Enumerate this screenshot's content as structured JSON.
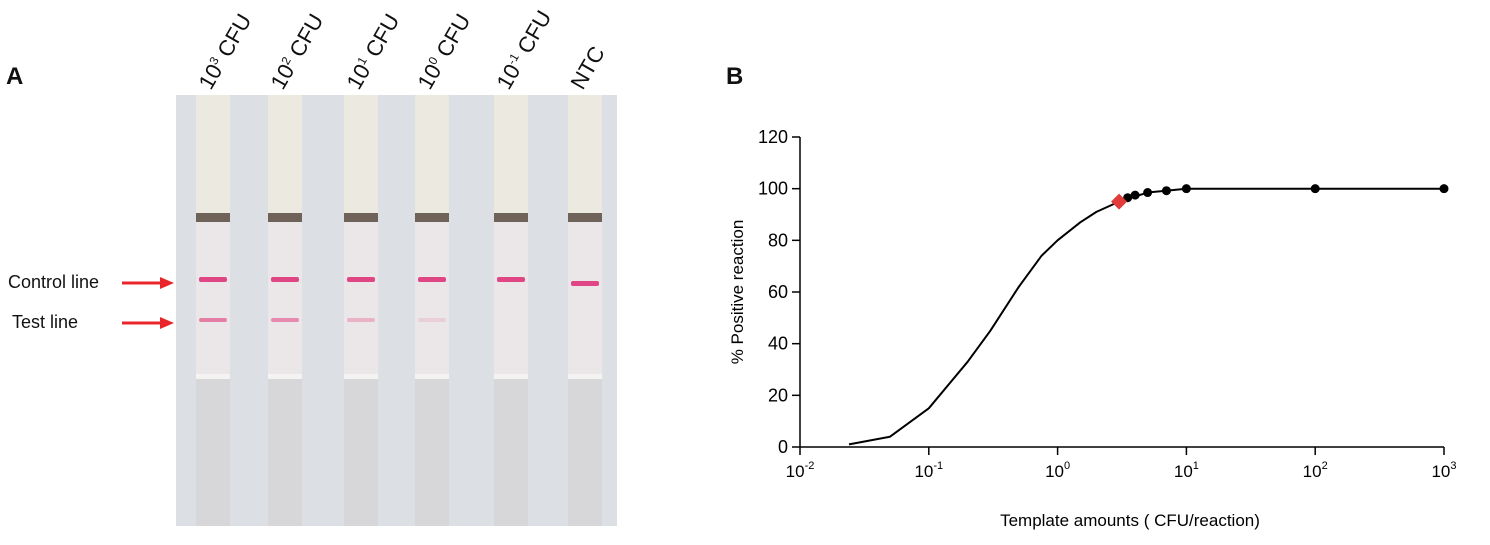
{
  "panel_a": {
    "letter": "A",
    "strips": [
      {
        "base": "10",
        "exp": "3",
        "unit": "CFU",
        "test_intensity": 0.9
      },
      {
        "base": "10",
        "exp": "2",
        "unit": "CFU",
        "test_intensity": 0.8
      },
      {
        "base": "10",
        "exp": "1",
        "unit": "CFU",
        "test_intensity": 0.45
      },
      {
        "base": "10",
        "exp": "0",
        "unit": "CFU",
        "test_intensity": 0.2
      },
      {
        "base": "10",
        "exp": "-1",
        "unit": "CFU",
        "test_intensity": 0.0
      },
      {
        "base": "NTC",
        "exp": "",
        "unit": "",
        "test_intensity": 0.0
      }
    ],
    "control_line_label": "Control line",
    "test_line_label": "Test line",
    "colors": {
      "arrow": "#e8252b",
      "control_line": "#e04584",
      "test_line": "#e6739f"
    }
  },
  "panel_b": {
    "letter": "B"
  },
  "chart_data": {
    "type": "scatter",
    "xlabel": "Template amounts ( CFU/reaction)",
    "ylabel": "% Positive reaction",
    "xscale": "log",
    "xlim": [
      0.01,
      1000
    ],
    "ylim": [
      0,
      120
    ],
    "xticks": [
      {
        "base": "10",
        "exp": "-2"
      },
      {
        "base": "10",
        "exp": "-1"
      },
      {
        "base": "10",
        "exp": "0"
      },
      {
        "base": "10",
        "exp": "1"
      },
      {
        "base": "10",
        "exp": "2"
      },
      {
        "base": "10",
        "exp": "3"
      }
    ],
    "yticks": [
      "0",
      "20",
      "40",
      "60",
      "80",
      "100",
      "120"
    ],
    "points": [
      {
        "x": 3.5,
        "y": 96.5
      },
      {
        "x": 4,
        "y": 97.5
      },
      {
        "x": 5,
        "y": 98.5
      },
      {
        "x": 7,
        "y": 99.2
      },
      {
        "x": 10,
        "y": 100
      },
      {
        "x": 100,
        "y": 100
      },
      {
        "x": 1000,
        "y": 100
      }
    ],
    "highlight_point": {
      "x": 3,
      "y": 95
    },
    "curve": [
      {
        "x": 0.024,
        "y": 1
      },
      {
        "x": 0.05,
        "y": 4
      },
      {
        "x": 0.1,
        "y": 15
      },
      {
        "x": 0.2,
        "y": 33
      },
      {
        "x": 0.3,
        "y": 45
      },
      {
        "x": 0.5,
        "y": 62
      },
      {
        "x": 0.75,
        "y": 74
      },
      {
        "x": 1,
        "y": 80
      },
      {
        "x": 1.5,
        "y": 87
      },
      {
        "x": 2,
        "y": 91
      },
      {
        "x": 3,
        "y": 95
      },
      {
        "x": 5,
        "y": 98.5
      },
      {
        "x": 10,
        "y": 100
      },
      {
        "x": 100,
        "y": 100
      },
      {
        "x": 1000,
        "y": 100
      }
    ],
    "colors": {
      "curve": "#000000",
      "points": "#000000",
      "highlight": "#e23b3b"
    }
  }
}
